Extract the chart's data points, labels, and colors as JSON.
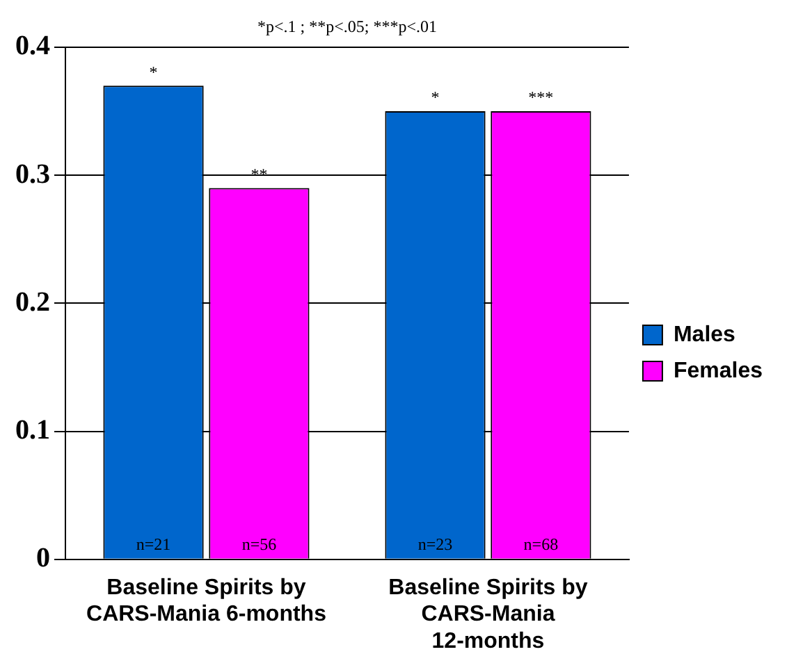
{
  "chart_data": {
    "type": "bar",
    "categories": [
      "Baseline Spirits by CARS-Mania 6-months",
      "Baseline Spirits by CARS-Mania 12-months"
    ],
    "series": [
      {
        "name": "Males",
        "color": "#0066cc",
        "values": [
          0.37,
          0.35
        ],
        "value_labels": [
          "*",
          "*"
        ]
      },
      {
        "name": "Females",
        "color": "#ff00ff",
        "values": [
          0.29,
          0.35
        ],
        "value_labels": [
          "**",
          "***"
        ]
      }
    ],
    "ylim": [
      0,
      0.4
    ],
    "yticks": [
      0,
      0.1,
      0.2,
      0.3,
      0.4
    ],
    "grid": "y",
    "legend": "right",
    "annotations": [
      "*p<.1 ; **p<.05; ***p<.01",
      {
        "text": "n=21",
        "x": "Baseline Spirits by CARS-Mania 6-months",
        "y": 0
      },
      {
        "text": "n=56",
        "x": "Baseline Spirits by CARS-Mania 6-months",
        "y": 0
      },
      {
        "text": "n=23",
        "x": "Baseline Spirits by CARS-Mania 12-months",
        "y": 0
      },
      {
        "text": "n=68",
        "x": "Baseline Spirits by CARS-Mania 12-months",
        "y": 0
      }
    ]
  }
}
